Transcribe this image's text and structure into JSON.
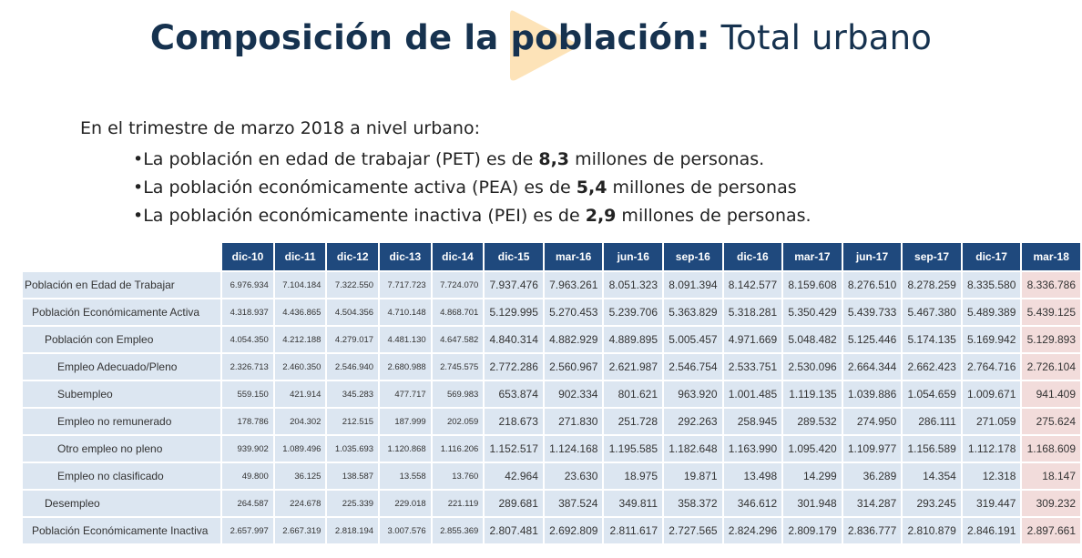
{
  "title": {
    "bold": "Composición de la población:",
    "light": "Total urbano"
  },
  "intro": "En el trimestre de marzo 2018 a nivel urbano:",
  "bullets": [
    {
      "prefix": "•La población en edad de trabajar (PET) es de ",
      "value": "8,3",
      "suffix": " millones de personas."
    },
    {
      "prefix": "•La población económicamente activa (PEA) es de ",
      "value": "5,4",
      "suffix": " millones de personas"
    },
    {
      "prefix": "•La población económicamente inactiva (PEI) es de ",
      "value": "2,9",
      "suffix": " millones de personas."
    }
  ],
  "colors": {
    "header_bg": "#1f497d",
    "cell_bg": "#dce6f1",
    "highlight_bg": "#f2dcdb",
    "title_color": "#16324f",
    "deco_color": "#fde3b8"
  },
  "table": {
    "columns": [
      "dic-10",
      "dic-11",
      "dic-12",
      "dic-13",
      "dic-14",
      "dic-15",
      "mar-16",
      "jun-16",
      "sep-16",
      "dic-16",
      "mar-17",
      "jun-17",
      "sep-17",
      "dic-17",
      "mar-18"
    ],
    "rows": [
      {
        "label": "Población en Edad de Trabajar",
        "indent": 0,
        "values": [
          "6.976.934",
          "7.104.184",
          "7.322.550",
          "7.717.723",
          "7.724.070",
          "7.937.476",
          "7.963.261",
          "8.051.323",
          "8.091.394",
          "8.142.577",
          "8.159.608",
          "8.276.510",
          "8.278.259",
          "8.335.580",
          "8.336.786"
        ]
      },
      {
        "label": "Población Económicamente Activa",
        "indent": 1,
        "values": [
          "4.318.937",
          "4.436.865",
          "4.504.356",
          "4.710.148",
          "4.868.701",
          "5.129.995",
          "5.270.453",
          "5.239.706",
          "5.363.829",
          "5.318.281",
          "5.350.429",
          "5.439.733",
          "5.467.380",
          "5.489.389",
          "5.439.125"
        ]
      },
      {
        "label": "Población con Empleo",
        "indent": 2,
        "values": [
          "4.054.350",
          "4.212.188",
          "4.279.017",
          "4.481.130",
          "4.647.582",
          "4.840.314",
          "4.882.929",
          "4.889.895",
          "5.005.457",
          "4.971.669",
          "5.048.482",
          "5.125.446",
          "5.174.135",
          "5.169.942",
          "5.129.893"
        ]
      },
      {
        "label": "Empleo Adecuado/Pleno",
        "indent": 3,
        "values": [
          "2.326.713",
          "2.460.350",
          "2.546.940",
          "2.680.988",
          "2.745.575",
          "2.772.286",
          "2.560.967",
          "2.621.987",
          "2.546.754",
          "2.533.751",
          "2.530.096",
          "2.664.344",
          "2.662.423",
          "2.764.716",
          "2.726.104"
        ]
      },
      {
        "label": "Subempleo",
        "indent": 3,
        "values": [
          "559.150",
          "421.914",
          "345.283",
          "477.717",
          "569.983",
          "653.874",
          "902.334",
          "801.621",
          "963.920",
          "1.001.485",
          "1.119.135",
          "1.039.886",
          "1.054.659",
          "1.009.671",
          "941.409"
        ]
      },
      {
        "label": "Empleo no remunerado",
        "indent": 3,
        "values": [
          "178.786",
          "204.302",
          "212.515",
          "187.999",
          "202.059",
          "218.673",
          "271.830",
          "251.728",
          "292.263",
          "258.945",
          "289.532",
          "274.950",
          "286.111",
          "271.059",
          "275.624"
        ]
      },
      {
        "label": "Otro empleo no pleno",
        "indent": 3,
        "values": [
          "939.902",
          "1.089.496",
          "1.035.693",
          "1.120.868",
          "1.116.206",
          "1.152.517",
          "1.124.168",
          "1.195.585",
          "1.182.648",
          "1.163.990",
          "1.095.420",
          "1.109.977",
          "1.156.589",
          "1.112.178",
          "1.168.609"
        ]
      },
      {
        "label": "Empleo no clasificado",
        "indent": 3,
        "values": [
          "49.800",
          "36.125",
          "138.587",
          "13.558",
          "13.760",
          "42.964",
          "23.630",
          "18.975",
          "19.871",
          "13.498",
          "14.299",
          "36.289",
          "14.354",
          "12.318",
          "18.147"
        ]
      },
      {
        "label": "Desempleo",
        "indent": 2,
        "values": [
          "264.587",
          "224.678",
          "225.339",
          "229.018",
          "221.119",
          "289.681",
          "387.524",
          "349.811",
          "358.372",
          "346.612",
          "301.948",
          "314.287",
          "293.245",
          "319.447",
          "309.232"
        ]
      },
      {
        "label": "Población Económicamente Inactiva",
        "indent": 1,
        "values": [
          "2.657.997",
          "2.667.319",
          "2.818.194",
          "3.007.576",
          "2.855.369",
          "2.807.481",
          "2.692.809",
          "2.811.617",
          "2.727.565",
          "2.824.296",
          "2.809.179",
          "2.836.777",
          "2.810.879",
          "2.846.191",
          "2.897.661"
        ]
      }
    ]
  }
}
